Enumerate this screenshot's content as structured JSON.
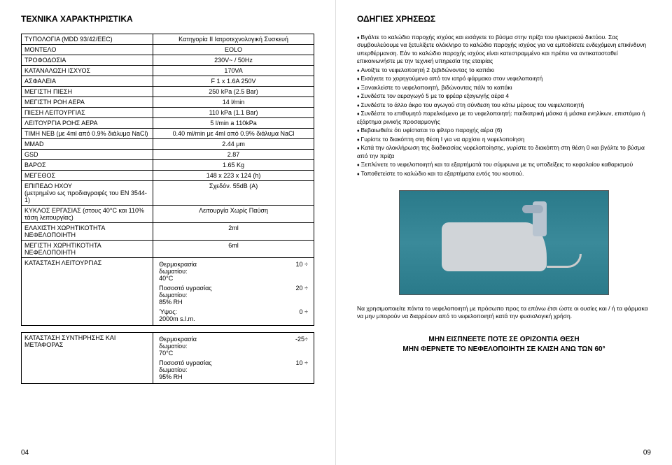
{
  "left": {
    "title": "ΤΕΧΝΙΚΑ ΧΑΡΑΚΤΗΡΙΣΤΙΚΑ",
    "rows": [
      [
        "ΤΥΠΟΛΟΓΙΑ (MDD 93/42/EEC)",
        "Κατηγορία II Ιατροτεχνολογική Συσκευή"
      ],
      [
        "ΜΟΝΤΕΛΟ",
        "EOLO"
      ],
      [
        "ΤΡΟΦΟΔΟΣΙΑ",
        "230V~ / 50Hz"
      ],
      [
        "ΚΑΤΑΝΑΛΩΣΗ ΙΣΧΥΟΣ",
        "170VA"
      ],
      [
        "ΑΣΦΑΛΕΙΑ",
        "F 1 x 1.6A 250V"
      ],
      [
        "ΜΕΓΙΣΤΗ ΠΙΕΣΗ",
        "250 kPa (2.5 Bar)"
      ],
      [
        "ΜΕΓΙΣΤΗ ΡΟΗ ΑΕΡΑ",
        "14 l/min"
      ],
      [
        "ΠΙΕΣΗ ΛΕΙΤΟΥΡΓΙΑΣ",
        "110 kPa (1.1 Bar)"
      ],
      [
        "ΛΕΙΤΟΥΡΓΙΑ ΡΟΗΣ ΑΕΡΑ",
        "5 l/min a 110kPa"
      ],
      [
        "ΤΙΜΗ ΝΕΒ (με 4ml από 0.9% διάλυμα NaCl)",
        "0.40 ml/min με 4ml από 0.9% διάλυμα NaCl"
      ],
      [
        "MMAD",
        "2.44 μm"
      ],
      [
        "GSD",
        "2.87"
      ],
      [
        "ΒΑΡΟΣ",
        "1.65 Kg"
      ],
      [
        "ΜΕΓΕΘΟΣ",
        "148 x 223 x 124 (h)"
      ],
      [
        "ΕΠΙΠΕΔΟ ΗΧΟΥ\n(μετρημένο ως προδιαγραφές του EN 3544-1)",
        "Σχεδόν. 55dB (A)"
      ],
      [
        "ΚΥΚΛΟΣ ΕΡΓΑΣΙΑΣ (στους 40°C και 110% τάση λειτουργίας)",
        "Λειτουργία Χωρίς Παύση"
      ],
      [
        "ΕΛΑΧΙΣΤΗ ΧΩΡΗΤΙΚΟΤΗΤΑ ΝΕΦΕΛΟΠΟΙΗΤΗ",
        "2ml"
      ],
      [
        "ΜΕΓΙΣΤΗ ΧΩΡΗΤΙΚΟΤΗΤΑ ΝΕΦΕΛΟΠΟΙΗΤΗ",
        "6ml"
      ]
    ],
    "op_label": "ΚΑΤΑΣΤΑΣΗ ΛΕΙΤΟΥΡΓΙΑΣ",
    "op_rows": [
      [
        "Θερμοκρασία δωματίου:\n40°C",
        "10 ÷"
      ],
      [
        "Ποσοστό υγρασίας δωματίου:\n85% RH",
        "20 ÷"
      ],
      [
        "Ύψος:\n2000m s.l.m.",
        "0 ÷"
      ]
    ],
    "st_label": "ΚΑΤΑΣΤΑΣΗ ΣΥΝΤΗΡΗΣΗΣ ΚΑΙ ΜΕΤΑΦΟΡΑΣ",
    "st_rows": [
      [
        "Θερμοκρασία δωματίου:\n70°C",
        "-25÷"
      ],
      [
        "Ποσοστό υγρασίας δωματίου:\n95% RH",
        "10 ÷"
      ]
    ],
    "page_num": "04"
  },
  "right": {
    "title": "ΟΔΗΓΙΕΣ ΧΡΗΣΕΩΣ",
    "bullets": [
      "Βγάλτε το καλώδιο παροχής ισχύος και εισάγετε το βύσμα στην πρίζα του ηλεκτρικού δικτύου. Σας συμβουλεύουμε να ξετυλίξετε ολόκληρο το καλώδιο παροχής ισχύος για να εμποδίσετε ενδεχόμενη επικίνδυνη υπερθέρμανση. Εάν το καλώδιο παροχής ισχύος είναι κατεστραμμένο και πρέπει να αντικατασταθεί επικοινωνήστε με την τεχνική υπηρεσία της εταιρίας",
      "Ανοίξτε το νεφελοποιητή 2 ξεβιδώνοντας το καπάκι",
      "Εισάγετε το χορηγούμενο από τον ιατρό φάρμακο στον νεφελοποιητή",
      "Ξανακλείστε το νεφελοποιητή, βιδώνοντας πάλι το καπάκι",
      "Συνδέστε τον αεραγωγό 5 με το φρέαρ εξαγωγής αέρα 4",
      "Συνδέστε το άλλο άκρο του αγωγού στη σύνδεση του κάτω μέρους του νεφελοποιητή",
      "Συνδέστε το επιθυμητό παρελκόμενο με το νεφελοποιητή: παιδιατρική μάσκα ή μάσκα ενηλίκων, επιστόμιο ή εξάρτημα ρινικής προσαρμογής",
      "Βεβαιωθείτε ότι υφίσταται το φίλτρο παροχής αέρα (6)",
      "Γυρίστε το διακόπτη στη θέση I για να αρχίσει η νεφελοποίηση",
      "Κατά την ολοκλήρωση της διαδικασίας νεφελοποίησης, γυρίστε το διακόπτη στη θέση 0 και βγάλτε το βύσμα από την πρίζα",
      "Ξεπλύνετε το νεφελοποιητή και τα εξαρτήματά του σύμφωνα με τις υποδείξεις το κεφαλαίου καθαρισμού",
      "Τοποθετείστε το καλώδιο και τα εξαρτήματα εντός του κουτιού."
    ],
    "note": "Να χρησιμοποιείτε πάντα το νεφελοποιητή με πρόσωπο προς τα επάνω έτσι ώστε οι ουσίες και / ή τα φάρμακα να μην μπορούν να διαρρέουν από το νεφελοποιητή κατά την φυσιολογική χρήση.",
    "warn1": "ΜΗΝ ΕΙΣΠΝΕΕΤΕ ΠΟΤΕ ΣΕ ΟΡΙΖΟΝΤΙΑ ΘΕΣΗ",
    "warn2": "ΜΗΝ ΦΕΡΝΕΤΕ ΤΟ ΝΕΦΕΛΟΠΟΙΗΤΗ ΣΕ ΚΛΙΣΗ ΑΝΩ ΤΩΝ 60°",
    "page_num": "09"
  }
}
